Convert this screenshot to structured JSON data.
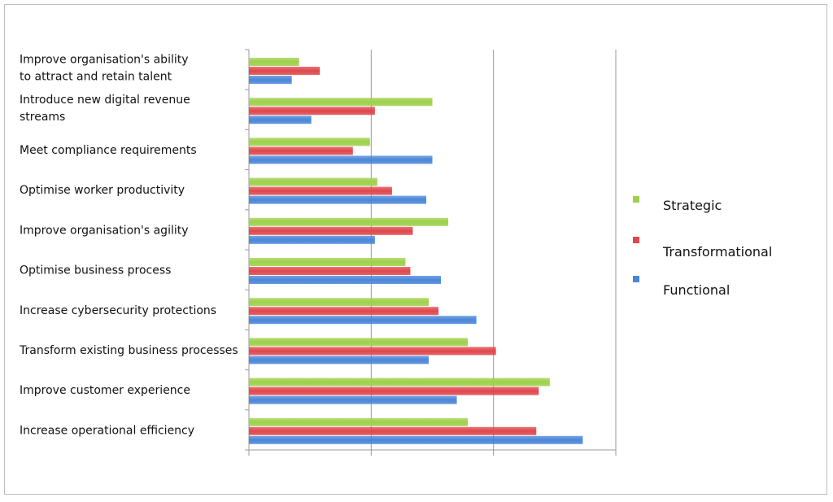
{
  "chart_data": {
    "type": "bar",
    "orientation": "horizontal",
    "title": "",
    "xlabel": "",
    "ylabel": "",
    "xlim": [
      0,
      30
    ],
    "grid": true,
    "legend_position": "right",
    "categories": [
      [
        "Improve organisation's ability",
        "to attract and retain talent"
      ],
      [
        "Introduce new digital revenue",
        "streams"
      ],
      [
        "Meet compliance requirements"
      ],
      [
        "Optimise worker productivity"
      ],
      [
        "Improve organisation's agility"
      ],
      [
        "Optimise business process"
      ],
      [
        "Increase cybersecurity protections"
      ],
      [
        "Transform existing business processes"
      ],
      [
        "Improve customer experience"
      ],
      [
        "Increase operational efficiency"
      ]
    ],
    "series": [
      {
        "name": "Strategic",
        "color": "#9ed04a",
        "values": [
          4.1,
          15.0,
          9.9,
          10.5,
          16.3,
          12.8,
          14.7,
          17.9,
          24.6,
          17.9
        ]
      },
      {
        "name": "Transformational",
        "color": "#e0474c",
        "values": [
          5.8,
          10.3,
          8.5,
          11.7,
          13.4,
          13.2,
          15.5,
          20.2,
          23.7,
          23.5
        ]
      },
      {
        "name": "Functional",
        "color": "#4a86d8",
        "values": [
          3.5,
          5.1,
          15.0,
          14.5,
          10.3,
          15.7,
          18.6,
          14.7,
          17.0,
          27.3
        ]
      }
    ]
  }
}
